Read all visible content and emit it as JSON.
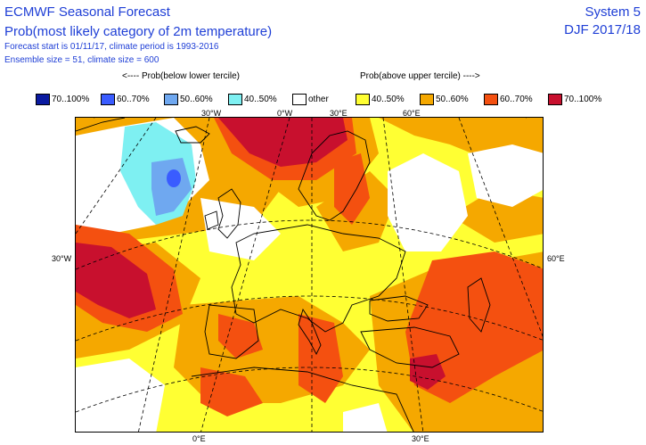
{
  "header": {
    "title": "ECMWF Seasonal Forecast",
    "subtitle": "Prob(most likely category of 2m temperature)",
    "forecast_info": "Forecast start is 01/11/17, climate period is 1993-2016",
    "ensemble_info": "Ensemble size = 51, climate size = 600",
    "system": "System 5",
    "season": "DJF 2017/18"
  },
  "legend": {
    "below_title": "<---- Prob(below lower tercile)",
    "above_title": "Prob(above upper tercile) ---->",
    "items": [
      {
        "label": "70..100%",
        "color": "#0a1aa0"
      },
      {
        "label": "60..70%",
        "color": "#3a5cff"
      },
      {
        "label": "50..60%",
        "color": "#6fa8f0"
      },
      {
        "label": "40..50%",
        "color": "#7ef0f2"
      },
      {
        "label": "other",
        "color": "#ffffff"
      },
      {
        "label": "40..50%",
        "color": "#ffff33"
      },
      {
        "label": "50..60%",
        "color": "#f5a800"
      },
      {
        "label": "60..70%",
        "color": "#f45010"
      },
      {
        "label": "70..100%",
        "color": "#c8102e"
      }
    ]
  },
  "map_labels": {
    "top": [
      "30°W",
      "0°W",
      "30°E",
      "60°E"
    ],
    "left": "30°W",
    "right": "60°E",
    "bottom": [
      "0°E",
      "30°E"
    ]
  }
}
